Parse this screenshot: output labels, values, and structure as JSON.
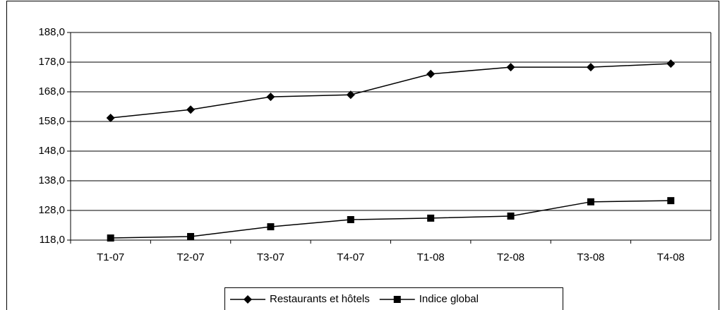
{
  "chart_data": {
    "type": "line",
    "categories": [
      "T1-07",
      "T2-07",
      "T3-07",
      "T4-07",
      "T1-08",
      "T2-08",
      "T3-08",
      "T4-08"
    ],
    "series": [
      {
        "name": "Restaurants et hôtels",
        "color": "#000000",
        "marker": "diamond",
        "values": [
          159.2,
          162.0,
          166.3,
          167.0,
          174.0,
          176.3,
          176.3,
          177.5
        ]
      },
      {
        "name": "Indice global",
        "color": "#000000",
        "marker": "square",
        "values": [
          118.7,
          119.2,
          122.5,
          124.9,
          125.4,
          126.1,
          130.9,
          131.3
        ]
      }
    ],
    "ylim": [
      118,
      188
    ],
    "yticks": [
      {
        "value": 118,
        "label": "118,0"
      },
      {
        "value": 128,
        "label": "128,0"
      },
      {
        "value": 138,
        "label": "138,0"
      },
      {
        "value": 148,
        "label": "148,0"
      },
      {
        "value": 158,
        "label": "158,0"
      },
      {
        "value": 168,
        "label": "168,0"
      },
      {
        "value": 178,
        "label": "178,0"
      },
      {
        "value": 188,
        "label": "188,0"
      }
    ],
    "grid": true,
    "legend": "bottom"
  }
}
